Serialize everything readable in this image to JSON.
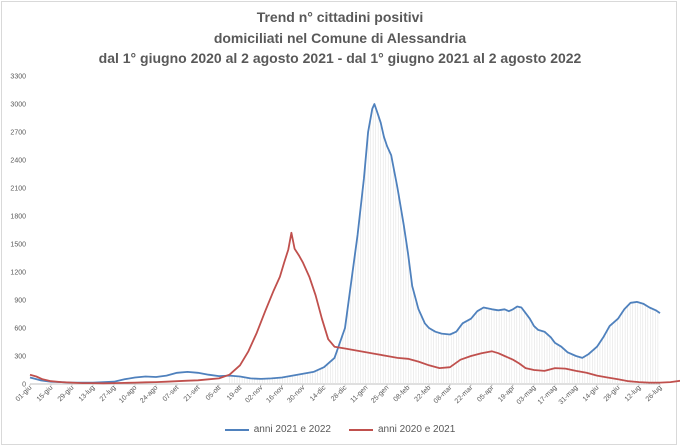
{
  "chart_data": {
    "type": "line",
    "title": "Trend n° cittadini positivi",
    "subtitle_1": "domiciliati nel Comune di Alessandria",
    "subtitle_2": "dal 1° giugno 2020 al 2 agosto 2021 - dal 1° giugno 2021 al 2 agosto 2022",
    "xlabel": "",
    "ylabel": "",
    "ylim": [
      0,
      3300
    ],
    "yticks": [
      0,
      300,
      600,
      900,
      1200,
      1500,
      1800,
      2100,
      2400,
      2700,
      3000,
      3300
    ],
    "grid": false,
    "legend_position": "bottom",
    "categories": [
      "01-giu",
      "15-giu",
      "29-giu",
      "13-lug",
      "27-lug",
      "10-ago",
      "24-ago",
      "07-set",
      "21-set",
      "05-ott",
      "19-ott",
      "02-nov",
      "16-nov",
      "30-nov",
      "14-dic",
      "28-dic",
      "11-gen",
      "25-gen",
      "08-feb",
      "22-feb",
      "08-mar",
      "22-mar",
      "05-apr",
      "19-apr",
      "03-mag",
      "17-mag",
      "31-mag",
      "14-giu",
      "28-giu",
      "12-lug",
      "26-lug"
    ],
    "series": [
      {
        "name": "anni 2021 e 2022",
        "color": "#4f81bd",
        "points": [
          [
            0,
            70
          ],
          [
            0.5,
            40
          ],
          [
            1,
            25
          ],
          [
            1.5,
            20
          ],
          [
            2,
            15
          ],
          [
            2.5,
            15
          ],
          [
            3,
            15
          ],
          [
            3.5,
            20
          ],
          [
            4,
            25
          ],
          [
            4.5,
            50
          ],
          [
            5,
            70
          ],
          [
            5.5,
            80
          ],
          [
            6,
            75
          ],
          [
            6.5,
            90
          ],
          [
            7,
            120
          ],
          [
            7.5,
            130
          ],
          [
            8,
            120
          ],
          [
            8.5,
            100
          ],
          [
            9,
            85
          ],
          [
            9.5,
            90
          ],
          [
            10,
            80
          ],
          [
            10.5,
            60
          ],
          [
            11,
            55
          ],
          [
            11.5,
            60
          ],
          [
            12,
            70
          ],
          [
            12.5,
            90
          ],
          [
            13,
            110
          ],
          [
            13.5,
            130
          ],
          [
            14,
            180
          ],
          [
            14.5,
            280
          ],
          [
            15,
            600
          ],
          [
            15.3,
            1100
          ],
          [
            15.6,
            1600
          ],
          [
            15.9,
            2200
          ],
          [
            16.1,
            2700
          ],
          [
            16.3,
            2950
          ],
          [
            16.4,
            3000
          ],
          [
            16.55,
            2900
          ],
          [
            16.7,
            2800
          ],
          [
            16.85,
            2650
          ],
          [
            17,
            2550
          ],
          [
            17.2,
            2450
          ],
          [
            17.5,
            2100
          ],
          [
            17.8,
            1700
          ],
          [
            18,
            1400
          ],
          [
            18.2,
            1050
          ],
          [
            18.5,
            800
          ],
          [
            18.8,
            650
          ],
          [
            19,
            600
          ],
          [
            19.3,
            560
          ],
          [
            19.6,
            540
          ],
          [
            20,
            530
          ],
          [
            20.3,
            560
          ],
          [
            20.6,
            650
          ],
          [
            21,
            700
          ],
          [
            21.3,
            780
          ],
          [
            21.6,
            820
          ],
          [
            22,
            800
          ],
          [
            22.3,
            790
          ],
          [
            22.6,
            800
          ],
          [
            22.8,
            780
          ],
          [
            23,
            800
          ],
          [
            23.2,
            830
          ],
          [
            23.4,
            820
          ],
          [
            23.6,
            760
          ],
          [
            23.8,
            700
          ],
          [
            24,
            620
          ],
          [
            24.2,
            580
          ],
          [
            24.5,
            560
          ],
          [
            24.8,
            500
          ],
          [
            25,
            440
          ],
          [
            25.3,
            400
          ],
          [
            25.6,
            340
          ],
          [
            26,
            300
          ],
          [
            26.3,
            280
          ],
          [
            26.6,
            320
          ],
          [
            27,
            400
          ],
          [
            27.3,
            500
          ],
          [
            27.6,
            620
          ],
          [
            28,
            700
          ],
          [
            28.3,
            800
          ],
          [
            28.6,
            870
          ],
          [
            28.9,
            880
          ],
          [
            29.2,
            860
          ],
          [
            29.5,
            820
          ],
          [
            29.8,
            790
          ],
          [
            30,
            760
          ]
        ]
      },
      {
        "name": "anni 2020 e 2021",
        "color": "#c0504d",
        "points": [
          [
            0,
            100
          ],
          [
            0.3,
            80
          ],
          [
            0.6,
            50
          ],
          [
            1,
            30
          ],
          [
            1.5,
            20
          ],
          [
            2,
            15
          ],
          [
            2.5,
            10
          ],
          [
            3,
            10
          ],
          [
            3.5,
            8
          ],
          [
            4,
            10
          ],
          [
            4.5,
            12
          ],
          [
            5,
            15
          ],
          [
            5.5,
            18
          ],
          [
            6,
            20
          ],
          [
            6.5,
            25
          ],
          [
            7,
            30
          ],
          [
            7.5,
            35
          ],
          [
            8,
            40
          ],
          [
            8.5,
            50
          ],
          [
            9,
            60
          ],
          [
            9.5,
            100
          ],
          [
            10,
            200
          ],
          [
            10.4,
            350
          ],
          [
            10.8,
            550
          ],
          [
            11.2,
            780
          ],
          [
            11.6,
            1000
          ],
          [
            11.9,
            1150
          ],
          [
            12.1,
            1300
          ],
          [
            12.3,
            1440
          ],
          [
            12.45,
            1620
          ],
          [
            12.6,
            1450
          ],
          [
            12.8,
            1380
          ],
          [
            13,
            1300
          ],
          [
            13.3,
            1150
          ],
          [
            13.6,
            950
          ],
          [
            13.9,
            700
          ],
          [
            14.2,
            480
          ],
          [
            14.5,
            400
          ],
          [
            15,
            380
          ],
          [
            15.5,
            360
          ],
          [
            16,
            340
          ],
          [
            16.5,
            320
          ],
          [
            17,
            300
          ],
          [
            17.5,
            280
          ],
          [
            18,
            270
          ],
          [
            18.5,
            240
          ],
          [
            19,
            200
          ],
          [
            19.5,
            170
          ],
          [
            20,
            180
          ],
          [
            20.5,
            260
          ],
          [
            21,
            300
          ],
          [
            21.5,
            330
          ],
          [
            22,
            350
          ],
          [
            22.3,
            330
          ],
          [
            22.6,
            300
          ],
          [
            23,
            260
          ],
          [
            23.3,
            220
          ],
          [
            23.6,
            170
          ],
          [
            24,
            150
          ],
          [
            24.5,
            140
          ],
          [
            25,
            170
          ],
          [
            25.5,
            165
          ],
          [
            26,
            140
          ],
          [
            26.5,
            120
          ],
          [
            27,
            90
          ],
          [
            27.5,
            70
          ],
          [
            28,
            50
          ],
          [
            28.5,
            30
          ],
          [
            29,
            20
          ],
          [
            29.5,
            15
          ],
          [
            30,
            15
          ],
          [
            30.5,
            20
          ],
          [
            31,
            35
          ]
        ]
      }
    ]
  }
}
